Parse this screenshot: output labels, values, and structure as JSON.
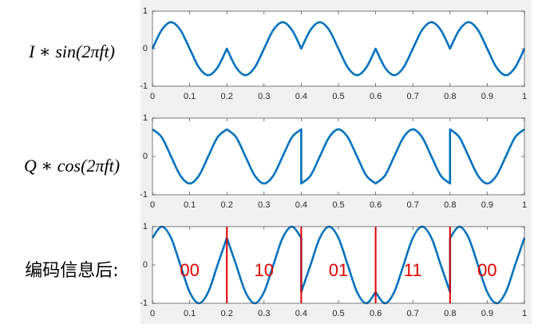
{
  "chart_data": [
    {
      "type": "line",
      "label": "I ∗ sin(2πft)",
      "color": "#0072bd",
      "x": [
        0,
        0.025,
        0.05,
        0.075,
        0.1,
        0.125,
        0.15,
        0.175,
        0.2,
        0.2,
        0.225,
        0.25,
        0.275,
        0.3,
        0.325,
        0.35,
        0.375,
        0.4,
        0.4,
        0.425,
        0.45,
        0.475,
        0.5,
        0.525,
        0.55,
        0.575,
        0.6,
        0.6,
        0.625,
        0.65,
        0.675,
        0.7,
        0.725,
        0.75,
        0.775,
        0.8,
        0.8,
        0.825,
        0.85,
        0.875,
        0.9,
        0.925,
        0.95,
        0.975,
        1
      ],
      "values": [
        0,
        0.5,
        0.707,
        0.5,
        0,
        -0.5,
        -0.707,
        -0.5,
        0,
        0,
        -0.5,
        -0.707,
        -0.5,
        0,
        0.5,
        0.707,
        0.5,
        0,
        0,
        0.5,
        0.707,
        0.5,
        0,
        -0.5,
        -0.707,
        -0.5,
        0,
        0,
        -0.5,
        -0.707,
        -0.5,
        0,
        0.5,
        0.707,
        0.5,
        0,
        0,
        0.5,
        0.707,
        0.5,
        0,
        -0.5,
        -0.707,
        -0.5,
        0
      ],
      "xlim": [
        0,
        1
      ],
      "ylim": [
        -1,
        1
      ],
      "xticks": [
        0,
        0.1,
        0.2,
        0.3,
        0.4,
        0.5,
        0.6,
        0.7,
        0.8,
        0.9,
        1
      ],
      "yticks": [
        -1,
        0,
        1
      ]
    },
    {
      "type": "line",
      "label": "Q ∗ cos(2πft)",
      "color": "#0072bd",
      "x": [
        0,
        0.025,
        0.05,
        0.075,
        0.1,
        0.125,
        0.15,
        0.175,
        0.2,
        0.2,
        0.225,
        0.25,
        0.275,
        0.3,
        0.325,
        0.35,
        0.375,
        0.4,
        0.4,
        0.425,
        0.45,
        0.475,
        0.5,
        0.525,
        0.55,
        0.575,
        0.6,
        0.6,
        0.625,
        0.65,
        0.675,
        0.7,
        0.725,
        0.75,
        0.775,
        0.8,
        0.8,
        0.825,
        0.85,
        0.875,
        0.9,
        0.925,
        0.95,
        0.975,
        1
      ],
      "values": [
        0.707,
        0.5,
        0,
        -0.5,
        -0.707,
        -0.5,
        0,
        0.5,
        0.707,
        0.707,
        0.5,
        0,
        -0.5,
        -0.707,
        -0.5,
        0,
        0.5,
        0.707,
        -0.707,
        -0.5,
        0,
        0.5,
        0.707,
        0.5,
        0,
        -0.5,
        -0.707,
        -0.707,
        -0.5,
        0,
        0.5,
        0.707,
        0.5,
        0,
        -0.5,
        -0.707,
        0.707,
        0.5,
        0,
        -0.5,
        -0.707,
        -0.5,
        0,
        0.5,
        0.707
      ],
      "xlim": [
        0,
        1
      ],
      "ylim": [
        -1,
        1
      ],
      "xticks": [
        0,
        0.1,
        0.2,
        0.3,
        0.4,
        0.5,
        0.6,
        0.7,
        0.8,
        0.9,
        1
      ],
      "yticks": [
        -1,
        0,
        1
      ]
    },
    {
      "type": "line",
      "label": "编码信息后:",
      "color": "#0072bd",
      "x": [
        0,
        0.025,
        0.05,
        0.075,
        0.1,
        0.125,
        0.15,
        0.175,
        0.2,
        0.2,
        0.225,
        0.25,
        0.275,
        0.3,
        0.325,
        0.35,
        0.375,
        0.4,
        0.4,
        0.425,
        0.45,
        0.475,
        0.5,
        0.525,
        0.55,
        0.575,
        0.6,
        0.6,
        0.625,
        0.65,
        0.675,
        0.7,
        0.725,
        0.75,
        0.775,
        0.8,
        0.8,
        0.825,
        0.85,
        0.875,
        0.9,
        0.925,
        0.95,
        0.975,
        1
      ],
      "values": [
        0.707,
        1,
        0.707,
        0,
        -0.707,
        -1,
        -0.707,
        0,
        0.707,
        0.707,
        0,
        -0.707,
        -1,
        -0.707,
        0,
        0.707,
        1,
        0.707,
        -0.707,
        0,
        0.707,
        1,
        0.707,
        0,
        -0.707,
        -1,
        -0.707,
        -0.707,
        -1,
        -0.707,
        0,
        0.707,
        1,
        0.707,
        0,
        -0.707,
        0.707,
        1,
        0.707,
        0,
        -0.707,
        -1,
        -0.707,
        0,
        0.707
      ],
      "xlim": [
        0,
        1
      ],
      "ylim": [
        -1,
        1
      ],
      "xticks": [
        0,
        0.1,
        0.2,
        0.3,
        0.4,
        0.5,
        0.6,
        0.7,
        0.8,
        0.9,
        1
      ],
      "yticks": [
        -1,
        0,
        1
      ],
      "boundaries": [
        0.2,
        0.4,
        0.6,
        0.8
      ],
      "boundary_color": "#e00000",
      "annotations": [
        "00",
        "10",
        "01",
        "11",
        "00"
      ]
    }
  ]
}
